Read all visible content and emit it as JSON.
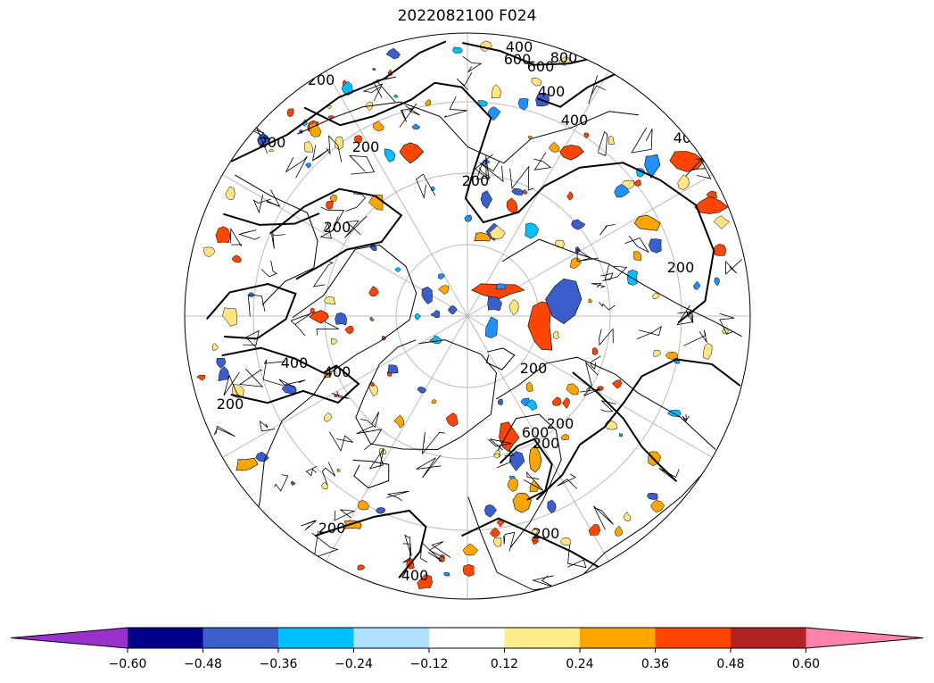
{
  "title": "2022082100 F024",
  "map": {
    "projection": "north-polar-stereographic",
    "contour_labels": [
      "400",
      "600",
      "800",
      "400",
      "600",
      "400",
      "400",
      "200",
      "200",
      "200",
      "200",
      "400",
      "400",
      "200",
      "200",
      "200",
      "200",
      "200",
      "200",
      "200",
      "600",
      "400",
      "200"
    ],
    "shade_colors": {
      "neg": [
        "#00bfff",
        "#3a5fcd",
        "#1e90ff"
      ],
      "pos": [
        "#ffa500",
        "#ff4500",
        "#ffe680"
      ]
    }
  },
  "colorbar": {
    "levels": [
      "−0.60",
      "−0.48",
      "−0.36",
      "−0.24",
      "−0.12",
      "0.12",
      "0.24",
      "0.36",
      "0.48",
      "0.60"
    ],
    "colors": [
      "#9932cc",
      "#00008b",
      "#3a5fcd",
      "#00bfff",
      "#b0e2ff",
      "#ffffff",
      "#ffec8b",
      "#ffa500",
      "#ff4500",
      "#b22222",
      "#ff82ab"
    ]
  }
}
